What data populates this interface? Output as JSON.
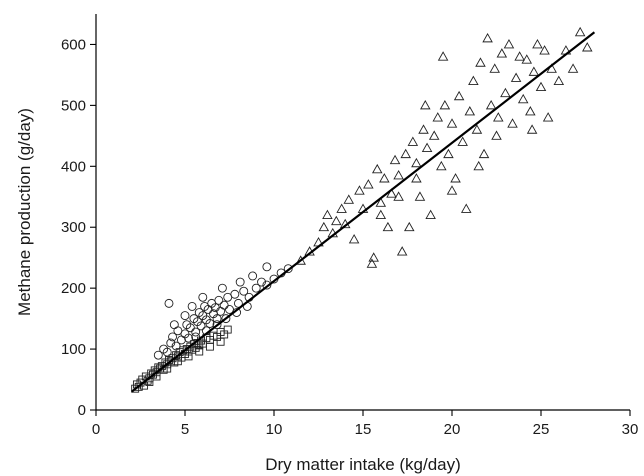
{
  "chart_data": {
    "type": "scatter",
    "title": "",
    "xlabel": "Dry matter intake (kg/day)",
    "ylabel": "Methane production (g/day)",
    "xlim": [
      0,
      30
    ],
    "ylim": [
      0,
      650
    ],
    "xticks": [
      "0",
      "5",
      "10",
      "15",
      "20",
      "25",
      "30"
    ],
    "yticks": [
      "0",
      "100",
      "200",
      "300",
      "400",
      "500",
      "600"
    ],
    "grid": false,
    "legend": "none",
    "marker_color": "#222222",
    "series": [
      {
        "marker": "square",
        "points": [
          [
            2.2,
            35
          ],
          [
            2.3,
            42
          ],
          [
            2.4,
            38
          ],
          [
            2.5,
            45
          ],
          [
            2.6,
            50
          ],
          [
            2.7,
            40
          ],
          [
            2.8,
            55
          ],
          [
            2.9,
            48
          ],
          [
            3.0,
            52
          ],
          [
            3.1,
            60
          ],
          [
            3.2,
            58
          ],
          [
            3.3,
            65
          ],
          [
            3.4,
            62
          ],
          [
            3.5,
            70
          ],
          [
            3.6,
            68
          ],
          [
            3.7,
            72
          ],
          [
            3.8,
            66
          ],
          [
            3.9,
            78
          ],
          [
            4.0,
            75
          ],
          [
            4.1,
            82
          ],
          [
            4.2,
            80
          ],
          [
            4.3,
            85
          ],
          [
            4.4,
            78
          ],
          [
            4.5,
            90
          ],
          [
            4.6,
            88
          ],
          [
            4.7,
            95
          ],
          [
            4.8,
            86
          ],
          [
            4.9,
            98
          ],
          [
            5.0,
            92
          ],
          [
            5.1,
            100
          ],
          [
            5.2,
            96
          ],
          [
            5.3,
            104
          ],
          [
            5.4,
            99
          ],
          [
            5.5,
            108
          ],
          [
            5.6,
            102
          ],
          [
            5.7,
            110
          ],
          [
            5.8,
            106
          ],
          [
            5.9,
            114
          ],
          [
            6.0,
            109
          ],
          [
            6.2,
            118
          ],
          [
            6.4,
            115
          ],
          [
            6.6,
            122
          ],
          [
            6.8,
            120
          ],
          [
            7.0,
            128
          ],
          [
            7.2,
            124
          ],
          [
            7.4,
            132
          ],
          [
            3.0,
            46
          ],
          [
            3.4,
            55
          ],
          [
            4.0,
            68
          ],
          [
            4.6,
            80
          ],
          [
            5.2,
            88
          ],
          [
            5.8,
            96
          ],
          [
            6.4,
            104
          ],
          [
            7.0,
            112
          ]
        ]
      },
      {
        "marker": "circle",
        "points": [
          [
            3.5,
            90
          ],
          [
            3.8,
            100
          ],
          [
            4.0,
            95
          ],
          [
            4.2,
            110
          ],
          [
            4.3,
            120
          ],
          [
            4.5,
            105
          ],
          [
            4.6,
            130
          ],
          [
            4.8,
            115
          ],
          [
            5.0,
            125
          ],
          [
            5.1,
            140
          ],
          [
            5.2,
            118
          ],
          [
            5.3,
            135
          ],
          [
            5.5,
            150
          ],
          [
            5.6,
            128
          ],
          [
            5.7,
            145
          ],
          [
            5.8,
            160
          ],
          [
            5.9,
            138
          ],
          [
            6.0,
            155
          ],
          [
            6.1,
            170
          ],
          [
            6.2,
            148
          ],
          [
            6.3,
            165
          ],
          [
            6.4,
            142
          ],
          [
            6.5,
            175
          ],
          [
            6.6,
            158
          ],
          [
            6.7,
            168
          ],
          [
            6.8,
            150
          ],
          [
            6.9,
            180
          ],
          [
            7.0,
            162
          ],
          [
            7.2,
            172
          ],
          [
            7.4,
            185
          ],
          [
            7.5,
            165
          ],
          [
            7.8,
            190
          ],
          [
            8.0,
            175
          ],
          [
            8.3,
            195
          ],
          [
            8.6,
            185
          ],
          [
            9.0,
            200
          ],
          [
            9.3,
            210
          ],
          [
            9.6,
            205
          ],
          [
            10.0,
            215
          ],
          [
            10.4,
            225
          ],
          [
            10.8,
            232
          ],
          [
            9.6,
            235
          ],
          [
            4.1,
            175
          ],
          [
            5.4,
            170
          ],
          [
            6.0,
            185
          ],
          [
            7.1,
            200
          ],
          [
            8.1,
            210
          ],
          [
            8.8,
            220
          ],
          [
            4.4,
            140
          ],
          [
            5.0,
            155
          ],
          [
            5.6,
            120
          ],
          [
            6.2,
            130
          ],
          [
            6.8,
            140
          ],
          [
            7.3,
            150
          ],
          [
            7.9,
            160
          ],
          [
            8.5,
            170
          ]
        ]
      },
      {
        "marker": "triangle",
        "points": [
          [
            11.5,
            245
          ],
          [
            12.0,
            260
          ],
          [
            12.5,
            275
          ],
          [
            12.8,
            300
          ],
          [
            13.0,
            320
          ],
          [
            13.3,
            290
          ],
          [
            13.5,
            310
          ],
          [
            13.8,
            330
          ],
          [
            14.0,
            305
          ],
          [
            14.2,
            345
          ],
          [
            14.5,
            280
          ],
          [
            14.8,
            360
          ],
          [
            15.0,
            330
          ],
          [
            15.3,
            370
          ],
          [
            15.5,
            240
          ],
          [
            15.6,
            250
          ],
          [
            15.8,
            395
          ],
          [
            16.0,
            340
          ],
          [
            16.2,
            380
          ],
          [
            16.4,
            300
          ],
          [
            16.6,
            355
          ],
          [
            16.8,
            410
          ],
          [
            17.0,
            385
          ],
          [
            17.2,
            260
          ],
          [
            17.4,
            420
          ],
          [
            17.6,
            300
          ],
          [
            17.8,
            440
          ],
          [
            18.0,
            405
          ],
          [
            18.2,
            350
          ],
          [
            18.4,
            460
          ],
          [
            18.6,
            430
          ],
          [
            18.8,
            320
          ],
          [
            19.0,
            450
          ],
          [
            19.2,
            480
          ],
          [
            19.4,
            400
          ],
          [
            19.6,
            500
          ],
          [
            19.8,
            420
          ],
          [
            20.0,
            470
          ],
          [
            20.2,
            380
          ],
          [
            20.4,
            515
          ],
          [
            20.6,
            440
          ],
          [
            20.8,
            330
          ],
          [
            21.0,
            490
          ],
          [
            21.2,
            540
          ],
          [
            21.4,
            460
          ],
          [
            21.6,
            570
          ],
          [
            21.8,
            420
          ],
          [
            22.0,
            610
          ],
          [
            22.2,
            500
          ],
          [
            22.4,
            560
          ],
          [
            22.6,
            480
          ],
          [
            22.8,
            585
          ],
          [
            23.0,
            520
          ],
          [
            23.2,
            600
          ],
          [
            23.4,
            470
          ],
          [
            23.6,
            545
          ],
          [
            23.8,
            580
          ],
          [
            24.0,
            510
          ],
          [
            24.2,
            575
          ],
          [
            24.4,
            490
          ],
          [
            24.6,
            555
          ],
          [
            24.8,
            600
          ],
          [
            25.0,
            530
          ],
          [
            25.2,
            590
          ],
          [
            25.4,
            480
          ],
          [
            25.6,
            560
          ],
          [
            26.0,
            540
          ],
          [
            26.4,
            590
          ],
          [
            26.8,
            560
          ],
          [
            27.2,
            620
          ],
          [
            27.6,
            595
          ],
          [
            19.5,
            580
          ],
          [
            18.5,
            500
          ],
          [
            21.5,
            400
          ],
          [
            22.5,
            450
          ],
          [
            24.5,
            460
          ],
          [
            16.0,
            320
          ],
          [
            17.0,
            350
          ],
          [
            18.0,
            380
          ],
          [
            20.0,
            360
          ]
        ]
      }
    ],
    "regression_line": {
      "x": [
        2.0,
        28.0
      ],
      "y": [
        30,
        620
      ]
    }
  }
}
